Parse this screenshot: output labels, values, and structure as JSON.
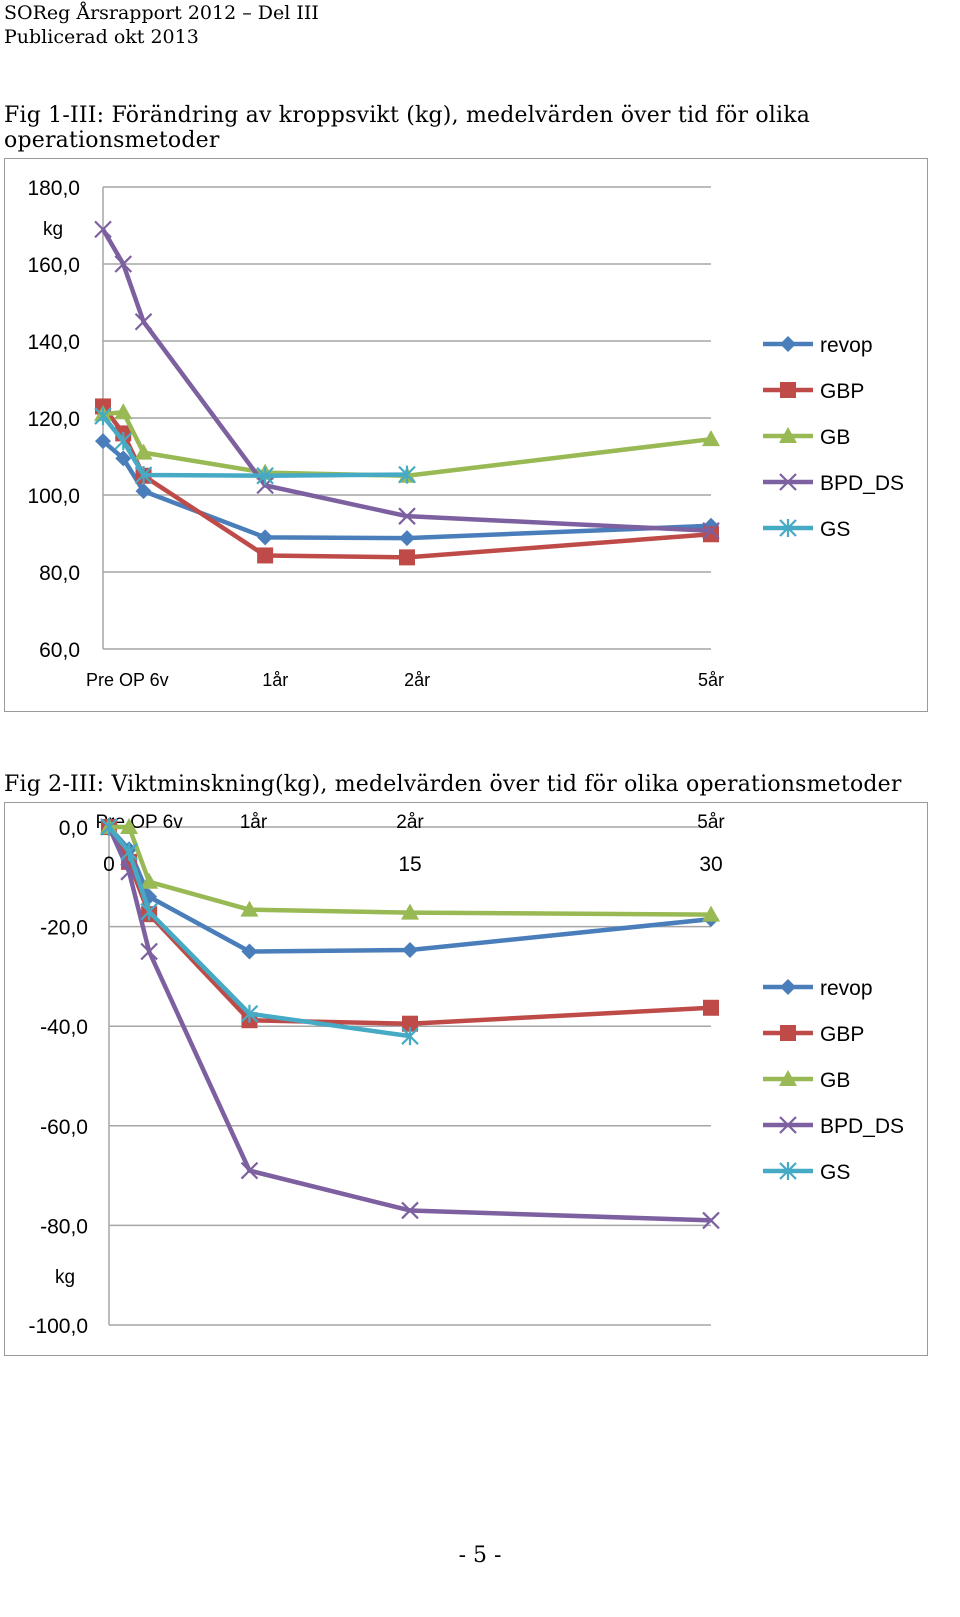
{
  "header": {
    "line1": "SOReg Årsrapport 2012 – Del III",
    "line2": "Publicerad okt 2013"
  },
  "page_number": "- 5 -",
  "colors": {
    "revop": "#4a7ebb",
    "GBP": "#be4b48",
    "GB": "#98b954",
    "BPD_DS": "#7d60a0",
    "GS": "#46aac5"
  },
  "chart_data": [
    {
      "type": "line",
      "title": "Fig 1-III: Förändring av kroppsvikt (kg), medelvärden över tid för olika operationsmetoder",
      "ylabel": "kg",
      "ylim": [
        60,
        180
      ],
      "yticks": [
        60,
        80,
        100,
        120,
        140,
        160,
        180
      ],
      "ytick_labels": [
        "60,0",
        "80,0",
        "100,0",
        "120,0",
        "140,0",
        "160,0",
        "180,0"
      ],
      "xlim": [
        0,
        30
      ],
      "xtick_labels": [
        {
          "x": 1.2,
          "label": "Pre OP 6v"
        },
        {
          "x": 8.5,
          "label": "1år"
        },
        {
          "x": 15.5,
          "label": "2år"
        },
        {
          "x": 30,
          "label": "5år"
        }
      ],
      "series": [
        {
          "name": "revop",
          "marker": "diamond",
          "points": [
            [
              0,
              114
            ],
            [
              1,
              109.5
            ],
            [
              2,
              101
            ],
            [
              8,
              89
            ],
            [
              15,
              88.8
            ],
            [
              30,
              92
            ]
          ]
        },
        {
          "name": "GBP",
          "marker": "square",
          "points": [
            [
              0,
              123
            ],
            [
              1,
              116
            ],
            [
              2,
              105
            ],
            [
              8,
              84.3
            ],
            [
              15,
              83.8
            ],
            [
              30,
              89.8
            ]
          ]
        },
        {
          "name": "GB",
          "marker": "triangle",
          "points": [
            [
              0,
              121
            ],
            [
              1,
              121.5
            ],
            [
              2,
              111
            ],
            [
              8,
              105.8
            ],
            [
              15,
              105
            ],
            [
              30,
              114.5
            ]
          ]
        },
        {
          "name": "BPD_DS",
          "marker": "x",
          "points": [
            [
              0,
              169
            ],
            [
              1,
              160
            ],
            [
              2,
              145
            ],
            [
              8,
              102.5
            ],
            [
              15,
              94.5
            ],
            [
              30,
              90.7
            ]
          ]
        },
        {
          "name": "GS",
          "marker": "star",
          "points": [
            [
              0,
              120.5
            ],
            [
              1,
              114
            ],
            [
              2,
              105.2
            ],
            [
              8,
              105
            ],
            [
              15,
              105.3
            ]
          ]
        }
      ]
    },
    {
      "type": "line",
      "title": "Fig 2-III: Viktminskning(kg), medelvärden över tid för olika operationsmetoder",
      "ylabel": "kg",
      "ylim": [
        -100,
        0
      ],
      "yticks": [
        -100,
        -80,
        -60,
        -40,
        -20,
        0
      ],
      "ytick_labels": [
        "-100,0",
        "-80,0",
        "-60,0",
        "-40,0",
        "-20,0",
        "0,0"
      ],
      "xlim": [
        0,
        30
      ],
      "xtick_labels": [
        {
          "x": 1.5,
          "label": "Pre OP 6v"
        },
        {
          "x": 7.2,
          "label": "1år"
        },
        {
          "x": 15,
          "label": "2år"
        },
        {
          "x": 30,
          "label": "5år"
        }
      ],
      "xtick_numbers": [
        {
          "x": 0,
          "label": "0"
        },
        {
          "x": 15,
          "label": "15"
        },
        {
          "x": 30,
          "label": "30"
        }
      ],
      "series": [
        {
          "name": "revop",
          "marker": "diamond",
          "points": [
            [
              0,
              0
            ],
            [
              1,
              -4.5
            ],
            [
              2,
              -14
            ],
            [
              7,
              -25
            ],
            [
              15,
              -24.7
            ],
            [
              30,
              -18.5
            ]
          ]
        },
        {
          "name": "GBP",
          "marker": "square",
          "points": [
            [
              0,
              0
            ],
            [
              1,
              -7
            ],
            [
              2,
              -17.5
            ],
            [
              7,
              -38.8
            ],
            [
              15,
              -39.5
            ],
            [
              30,
              -36.3
            ]
          ]
        },
        {
          "name": "GB",
          "marker": "triangle",
          "points": [
            [
              0,
              0
            ],
            [
              1,
              0
            ],
            [
              2,
              -11
            ],
            [
              7,
              -16.6
            ],
            [
              15,
              -17.2
            ],
            [
              30,
              -17.6
            ]
          ]
        },
        {
          "name": "BPD_DS",
          "marker": "x",
          "points": [
            [
              0,
              0
            ],
            [
              1,
              -9
            ],
            [
              2,
              -25
            ],
            [
              7,
              -69
            ],
            [
              15,
              -77
            ],
            [
              30,
              -79
            ]
          ]
        },
        {
          "name": "GS",
          "marker": "star",
          "points": [
            [
              0,
              0
            ],
            [
              1,
              -5
            ],
            [
              2,
              -17
            ],
            [
              7,
              -37.5
            ],
            [
              15,
              -42
            ]
          ]
        }
      ]
    }
  ]
}
